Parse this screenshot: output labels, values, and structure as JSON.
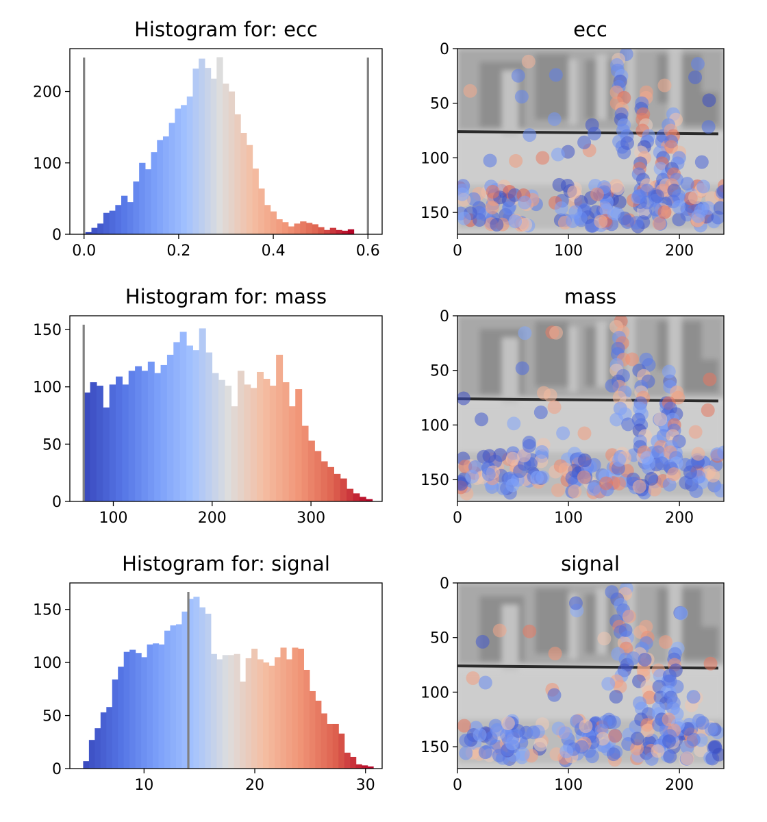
{
  "chart_data": [
    {
      "type": "bar",
      "title": "Histogram for: ecc",
      "xlim": [
        -0.03,
        0.63
      ],
      "ylim": [
        0,
        260
      ],
      "xticks": [
        0.0,
        0.2,
        0.4,
        0.6
      ],
      "xtick_labels": [
        "0.0",
        "0.2",
        "0.4",
        "0.6"
      ],
      "yticks": [
        0,
        100,
        200
      ],
      "ytick_labels": [
        "0",
        "100",
        "200"
      ],
      "bin_start": 0.003,
      "bin_end": 0.57,
      "values": [
        3,
        9,
        15,
        30,
        33,
        41,
        54,
        45,
        74,
        100,
        91,
        115,
        132,
        137,
        156,
        176,
        181,
        193,
        232,
        246,
        233,
        218,
        248,
        211,
        200,
        168,
        142,
        125,
        92,
        64,
        41,
        32,
        21,
        17,
        11,
        15,
        18,
        16,
        14,
        10,
        6,
        9,
        6,
        5,
        7
      ],
      "vlines": [
        0.0,
        0.6
      ]
    },
    {
      "type": "scatter",
      "title": "ecc",
      "xlim": [
        0,
        240
      ],
      "ylim": [
        170,
        0
      ],
      "xticks": [
        0,
        100,
        200
      ],
      "xtick_labels": [
        "0",
        "100",
        "200"
      ],
      "yticks": [
        0,
        50,
        100,
        150
      ],
      "ytick_labels": [
        "0",
        "50",
        "100",
        "150"
      ]
    },
    {
      "type": "bar",
      "title": "Histogram for: mass",
      "xlim": [
        56,
        372
      ],
      "ylim": [
        0,
        162
      ],
      "xticks": [
        100,
        200,
        300
      ],
      "xtick_labels": [
        "100",
        "200",
        "300"
      ],
      "yticks": [
        0,
        50,
        100,
        150
      ],
      "ytick_labels": [
        "0",
        "50",
        "100",
        "150"
      ],
      "bin_start": 70,
      "bin_end": 362,
      "values": [
        95,
        104,
        101,
        82,
        102,
        109,
        102,
        114,
        118,
        114,
        122,
        112,
        119,
        128,
        139,
        148,
        136,
        132,
        151,
        130,
        112,
        106,
        101,
        83,
        114,
        102,
        99,
        113,
        107,
        101,
        128,
        104,
        83,
        98,
        66,
        53,
        44,
        35,
        30,
        24,
        20,
        11,
        7,
        4,
        2
      ],
      "vlines": [
        70
      ]
    },
    {
      "type": "scatter",
      "title": "mass",
      "xlim": [
        0,
        240
      ],
      "ylim": [
        170,
        0
      ],
      "xticks": [
        0,
        100,
        200
      ],
      "xtick_labels": [
        "0",
        "100",
        "200"
      ],
      "yticks": [
        0,
        50,
        100,
        150
      ],
      "ytick_labels": [
        "0",
        "50",
        "100",
        "150"
      ]
    },
    {
      "type": "bar",
      "title": "Histogram for: signal",
      "xlim": [
        3.3,
        31.5
      ],
      "ylim": [
        0,
        175
      ],
      "xticks": [
        10,
        20,
        30
      ],
      "xtick_labels": [
        "10",
        "20",
        "30"
      ],
      "yticks": [
        0,
        50,
        100,
        150
      ],
      "ytick_labels": [
        "0",
        "50",
        "100",
        "150"
      ],
      "bin_start": 4.5,
      "bin_end": 30.7,
      "values": [
        7,
        27,
        38,
        53,
        58,
        84,
        96,
        110,
        112,
        109,
        105,
        117,
        118,
        117,
        130,
        135,
        136,
        148,
        160,
        162,
        152,
        146,
        108,
        103,
        107,
        107,
        108,
        82,
        104,
        113,
        103,
        100,
        97,
        105,
        114,
        103,
        114,
        113,
        93,
        73,
        64,
        52,
        42,
        42,
        33,
        15,
        11,
        4,
        3,
        2
      ],
      "vlines": [
        14
      ]
    },
    {
      "type": "scatter",
      "title": "signal",
      "xlim": [
        0,
        240
      ],
      "ylim": [
        170,
        0
      ],
      "xticks": [
        0,
        100,
        200
      ],
      "xtick_labels": [
        "0",
        "100",
        "200"
      ],
      "yticks": [
        0,
        50,
        100,
        150
      ],
      "ytick_labels": [
        "0",
        "50",
        "100",
        "150"
      ]
    }
  ]
}
